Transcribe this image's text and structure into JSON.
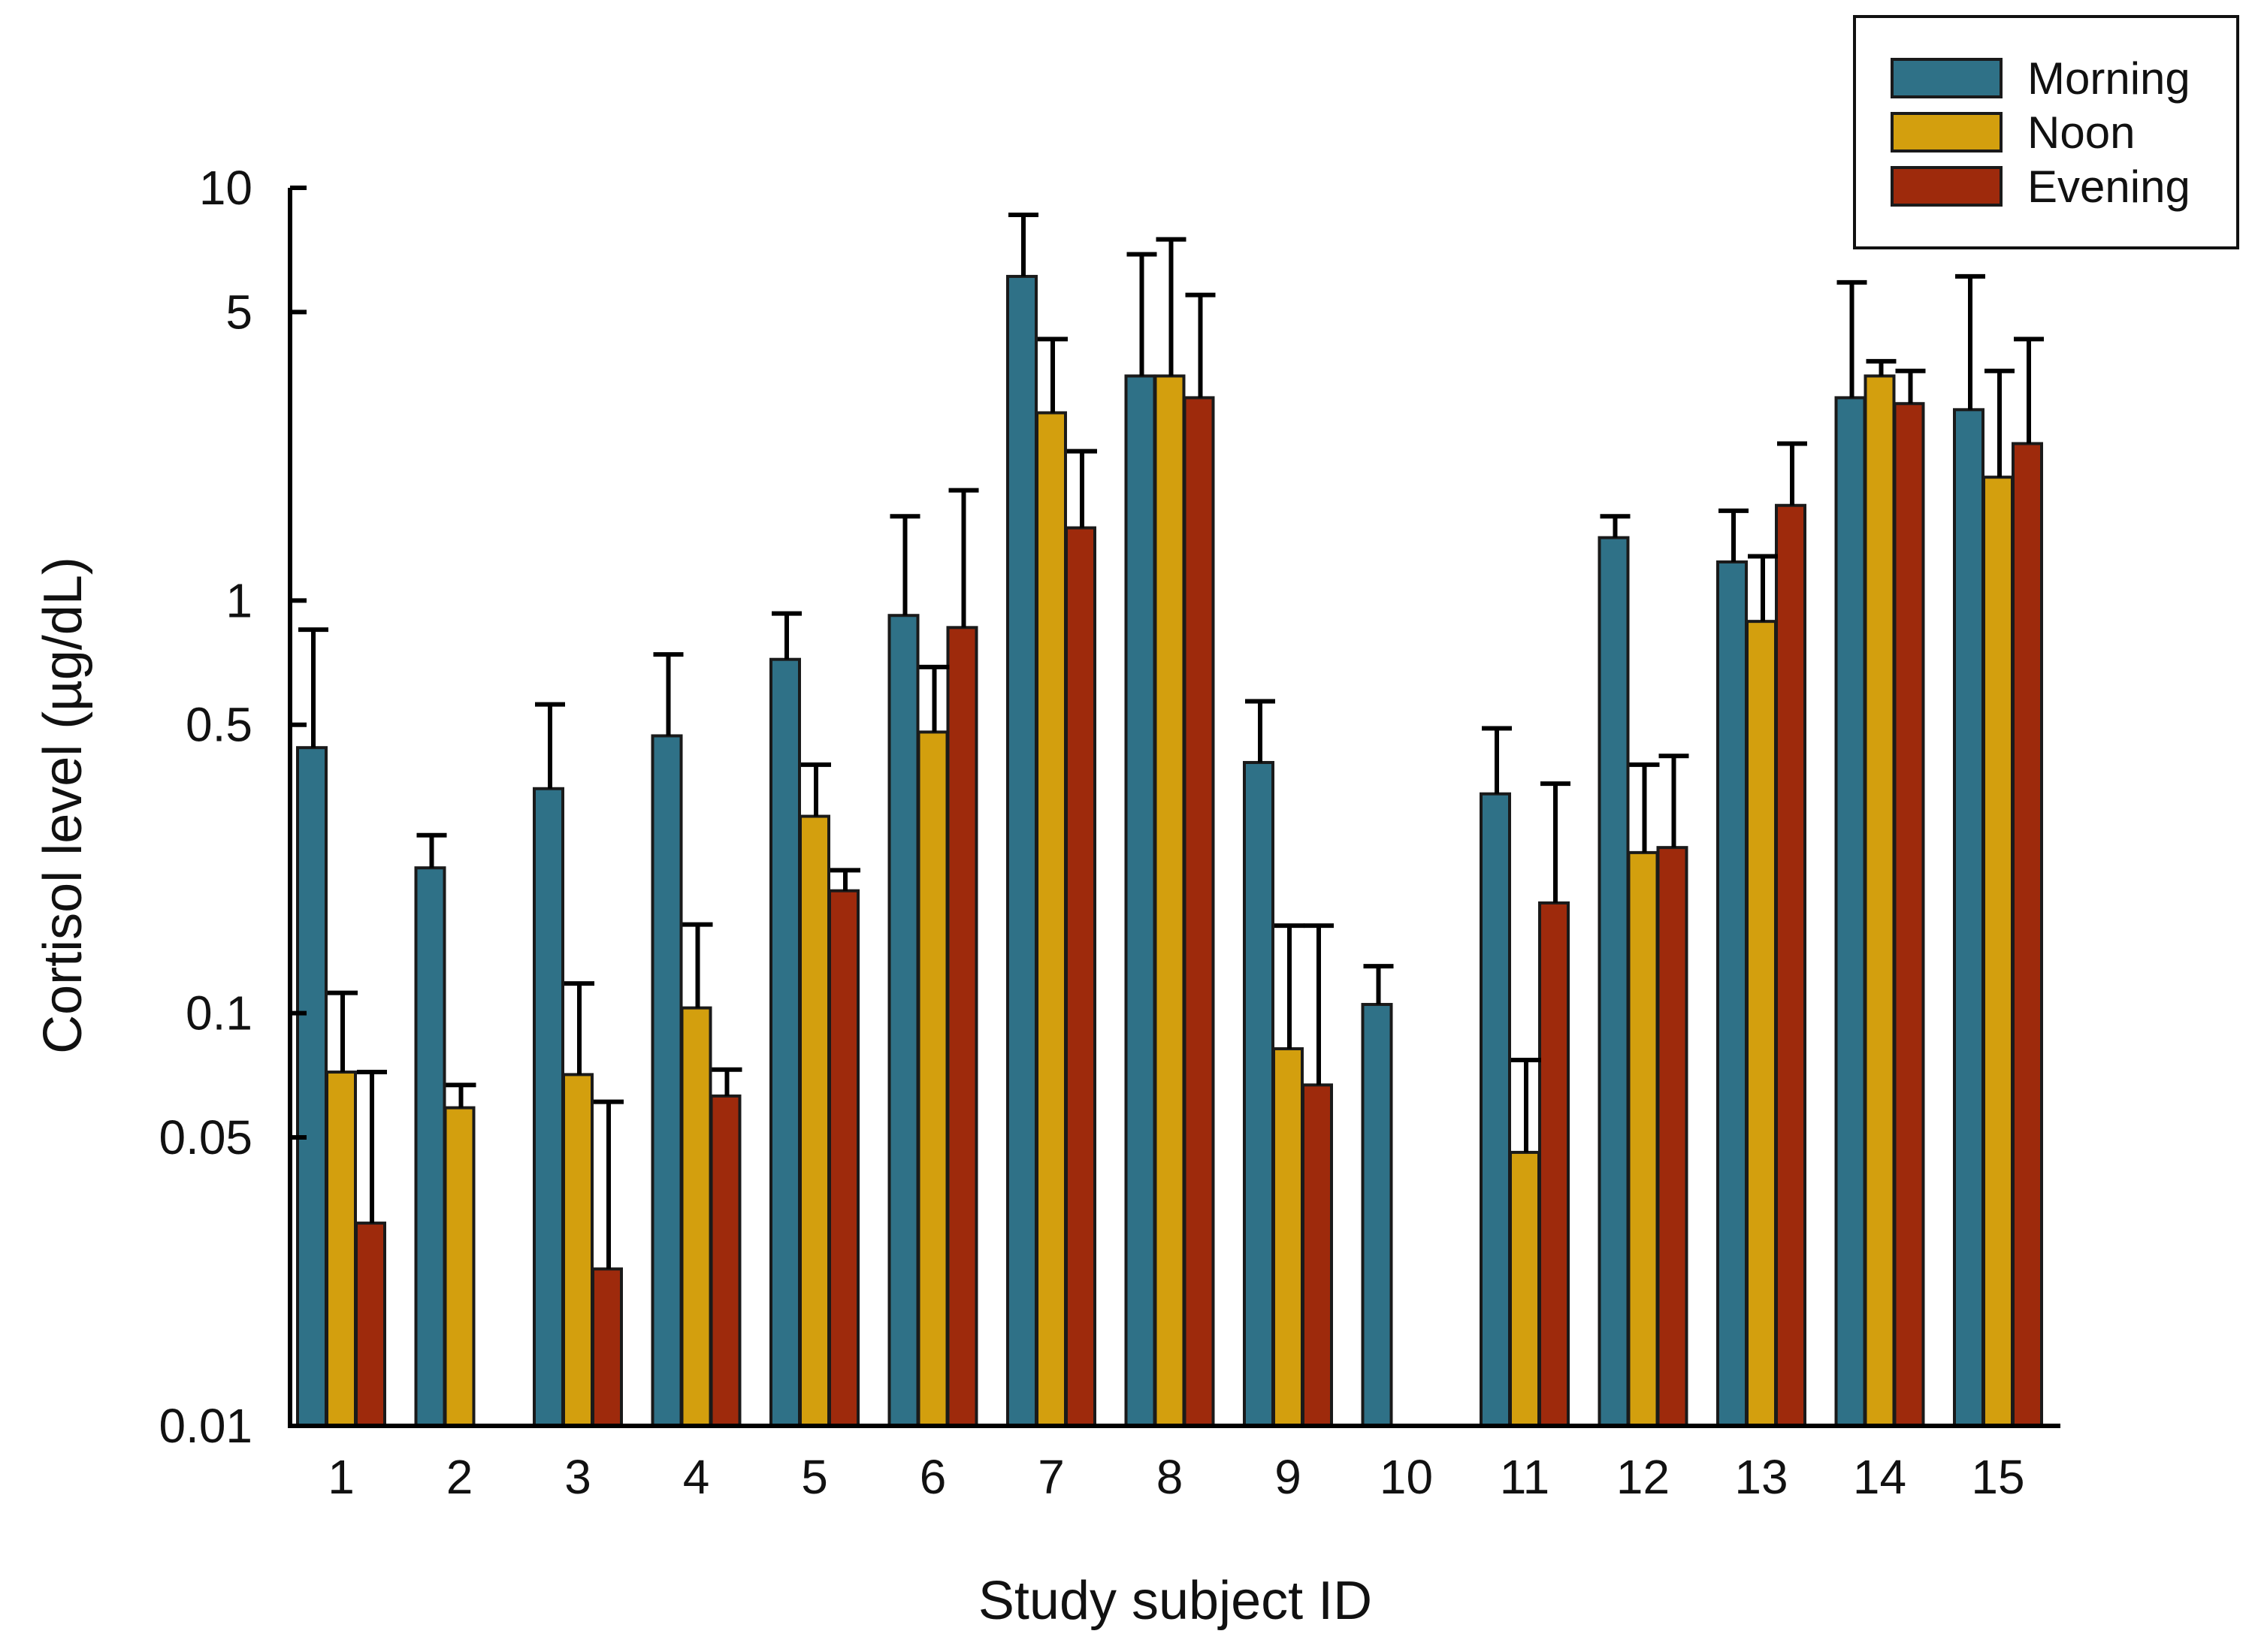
{
  "chart_data": {
    "type": "bar",
    "title": "",
    "xlabel": "Study subject ID",
    "ylabel": "Cortisol level (µg/dL)",
    "yscale": "log",
    "ylim": [
      0.01,
      10
    ],
    "yticks": [
      {
        "value": 10,
        "label": "10"
      },
      {
        "value": 5,
        "label": "5"
      },
      {
        "value": 1,
        "label": "1"
      },
      {
        "value": 0.5,
        "label": "0.5"
      },
      {
        "value": 0.1,
        "label": "0.1"
      },
      {
        "value": 0.05,
        "label": "0.05"
      },
      {
        "value": 0.01,
        "label": "0.01"
      }
    ],
    "categories": [
      "1",
      "2",
      "3",
      "4",
      "5",
      "6",
      "7",
      "8",
      "9",
      "10",
      "11",
      "12",
      "13",
      "14",
      "15"
    ],
    "legend_position": "top-right",
    "series": [
      {
        "name": "Morning",
        "color": "#2f7187",
        "values": [
          0.44,
          0.225,
          0.35,
          0.47,
          0.72,
          0.92,
          6.1,
          3.5,
          0.405,
          0.105,
          0.34,
          1.42,
          1.24,
          3.1,
          2.9
        ],
        "error_upper": [
          0.85,
          0.27,
          0.56,
          0.74,
          0.93,
          1.6,
          8.6,
          6.9,
          0.57,
          0.13,
          0.49,
          1.6,
          1.65,
          5.9,
          6.1
        ]
      },
      {
        "name": "Noon",
        "color": "#d39f0e",
        "values": [
          0.072,
          0.059,
          0.071,
          0.103,
          0.3,
          0.48,
          2.85,
          3.5,
          0.082,
          null,
          0.046,
          0.245,
          0.89,
          3.5,
          1.99
        ],
        "error_upper": [
          0.112,
          0.067,
          0.118,
          0.164,
          0.4,
          0.69,
          4.3,
          7.5,
          0.163,
          null,
          0.077,
          0.4,
          1.28,
          3.8,
          3.6
        ]
      },
      {
        "name": "Evening",
        "color": "#9e2a0c",
        "values": [
          0.031,
          null,
          0.024,
          0.063,
          0.198,
          0.86,
          1.5,
          3.1,
          0.067,
          null,
          0.185,
          0.252,
          1.7,
          3.0,
          2.4
        ],
        "error_upper": [
          0.072,
          null,
          0.061,
          0.073,
          0.222,
          1.85,
          2.3,
          5.5,
          0.163,
          null,
          0.36,
          0.42,
          2.4,
          3.6,
          4.3
        ]
      }
    ]
  }
}
